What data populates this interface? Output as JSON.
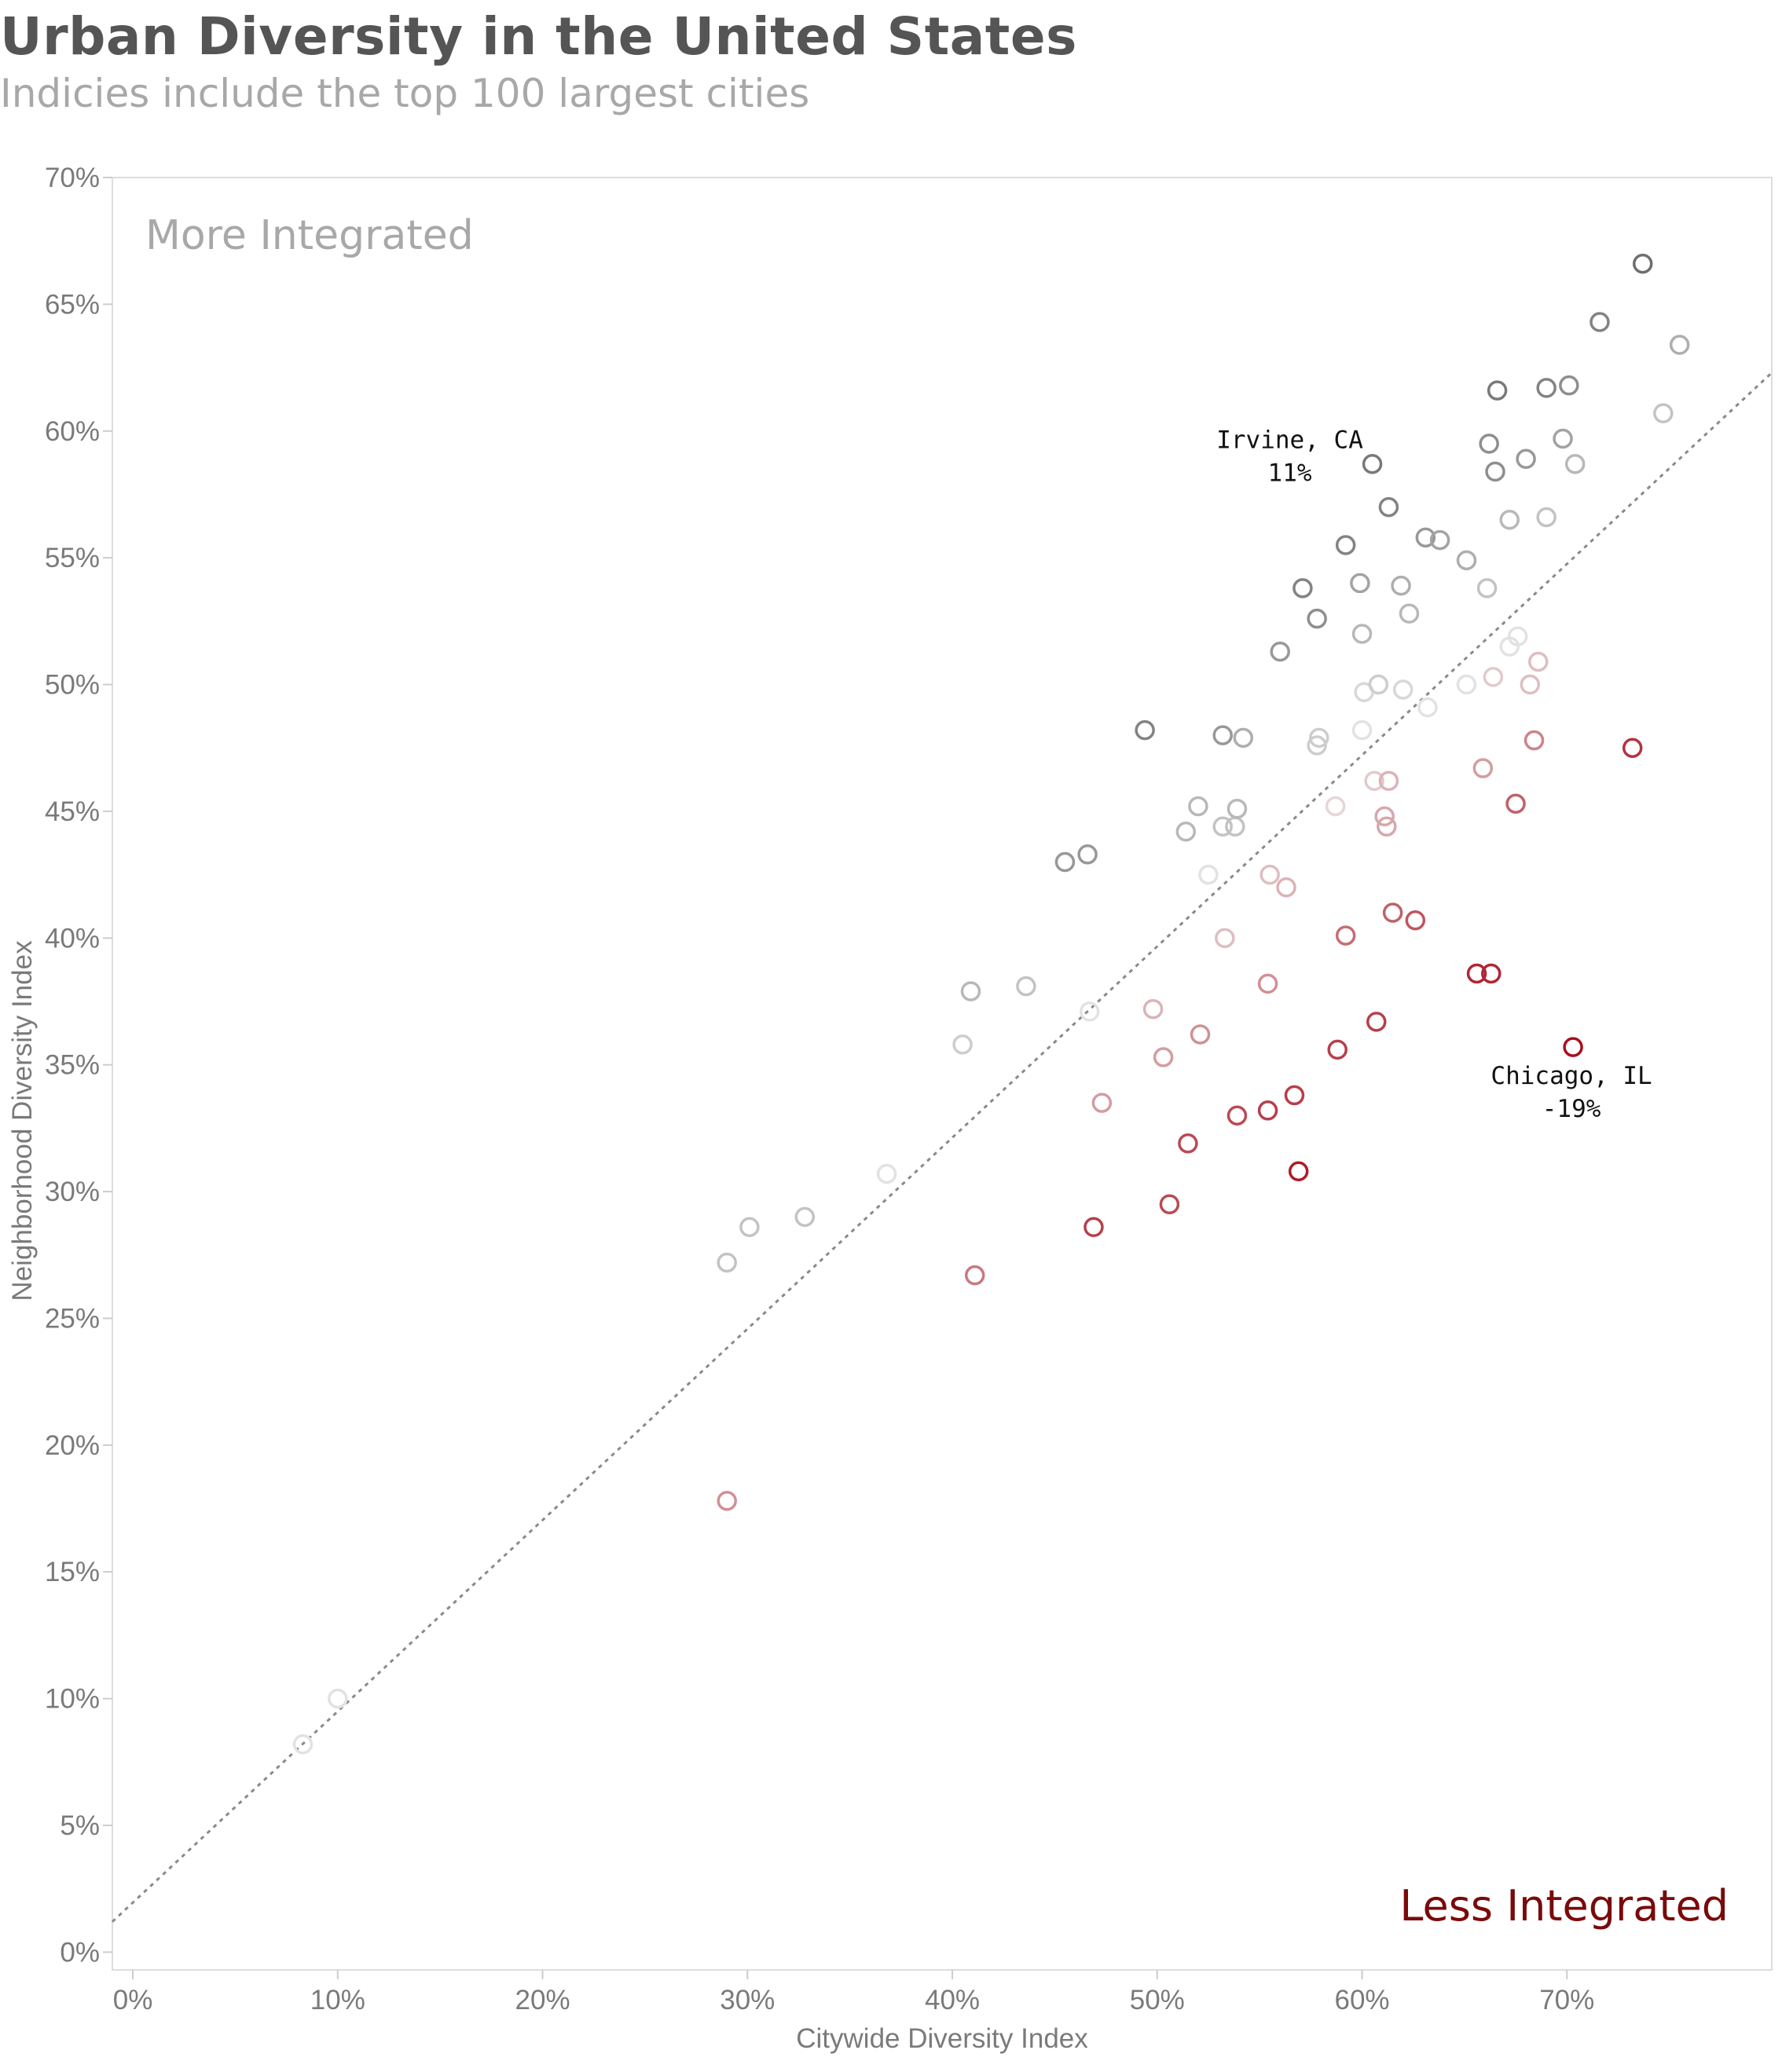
{
  "title": "Urban Diversity in the United States",
  "subtitle": "Indicies include the top 100 largest cities",
  "chart_data": {
    "type": "scatter",
    "title": "Urban Diversity in the United States",
    "subtitle": "Indicies include the top 100 largest cities",
    "xlabel": "Citywide Diversity Index",
    "ylabel": "Neighborhood Diversity Index",
    "xlim": [
      -0.01,
      0.8
    ],
    "ylim": [
      -0.007,
      0.7
    ],
    "x_ticks": [
      "0%",
      "10%",
      "20%",
      "30%",
      "40%",
      "50%",
      "60%",
      "70%"
    ],
    "y_ticks": [
      "0%",
      "5%",
      "10%",
      "15%",
      "20%",
      "25%",
      "30%",
      "35%",
      "40%",
      "45%",
      "50%",
      "55%",
      "60%",
      "65%",
      "70%"
    ],
    "grid": false,
    "marker": "hollow-circle",
    "color_scale": {
      "more_integrated": "#6e6e6e",
      "neutral": "#ededed",
      "less_integrated": "#a8101e"
    },
    "corner_labels": {
      "top_left": "More Integrated",
      "bottom_right": "Less Integrated"
    },
    "reference_line": {
      "style": "dotted",
      "color": "#8a8a8a",
      "x1": -0.01,
      "y1": 0.012,
      "x2": 0.8,
      "y2": 0.623
    },
    "annotations": [
      {
        "city": "Irvine, CA",
        "value": "11%",
        "x": 0.605,
        "y": 0.587
      },
      {
        "city": "Chicago, IL",
        "value": "-19%",
        "x": 0.703,
        "y": 0.357
      }
    ],
    "points": [
      {
        "x": 0.083,
        "y": 0.082,
        "d": 0.01
      },
      {
        "x": 0.1,
        "y": 0.1,
        "d": 0.01
      },
      {
        "x": 0.29,
        "y": 0.272,
        "d": 0.04
      },
      {
        "x": 0.301,
        "y": 0.286,
        "d": 0.04
      },
      {
        "x": 0.328,
        "y": 0.29,
        "d": 0.04
      },
      {
        "x": 0.368,
        "y": 0.307,
        "d": 0.01
      },
      {
        "x": 0.29,
        "y": 0.178,
        "d": -0.08
      },
      {
        "x": 0.411,
        "y": 0.267,
        "d": -0.1
      },
      {
        "x": 0.405,
        "y": 0.358,
        "d": 0.03
      },
      {
        "x": 0.409,
        "y": 0.379,
        "d": 0.05
      },
      {
        "x": 0.436,
        "y": 0.381,
        "d": 0.04
      },
      {
        "x": 0.455,
        "y": 0.43,
        "d": 0.08
      },
      {
        "x": 0.466,
        "y": 0.433,
        "d": 0.08
      },
      {
        "x": 0.467,
        "y": 0.371,
        "d": 0.01
      },
      {
        "x": 0.469,
        "y": 0.286,
        "d": -0.15
      },
      {
        "x": 0.473,
        "y": 0.335,
        "d": -0.07
      },
      {
        "x": 0.494,
        "y": 0.482,
        "d": 0.1
      },
      {
        "x": 0.498,
        "y": 0.372,
        "d": -0.05
      },
      {
        "x": 0.503,
        "y": 0.353,
        "d": -0.07
      },
      {
        "x": 0.506,
        "y": 0.295,
        "d": -0.14
      },
      {
        "x": 0.514,
        "y": 0.442,
        "d": 0.05
      },
      {
        "x": 0.515,
        "y": 0.319,
        "d": -0.14
      },
      {
        "x": 0.52,
        "y": 0.452,
        "d": 0.05
      },
      {
        "x": 0.521,
        "y": 0.362,
        "d": -0.08
      },
      {
        "x": 0.525,
        "y": 0.425,
        "d": 0.01
      },
      {
        "x": 0.532,
        "y": 0.48,
        "d": 0.08
      },
      {
        "x": 0.532,
        "y": 0.444,
        "d": 0.04
      },
      {
        "x": 0.533,
        "y": 0.4,
        "d": -0.04
      },
      {
        "x": 0.538,
        "y": 0.444,
        "d": 0.04
      },
      {
        "x": 0.539,
        "y": 0.451,
        "d": 0.05
      },
      {
        "x": 0.539,
        "y": 0.33,
        "d": -0.14
      },
      {
        "x": 0.542,
        "y": 0.479,
        "d": 0.06
      },
      {
        "x": 0.554,
        "y": 0.332,
        "d": -0.15
      },
      {
        "x": 0.554,
        "y": 0.382,
        "d": -0.08
      },
      {
        "x": 0.555,
        "y": 0.425,
        "d": -0.04
      },
      {
        "x": 0.56,
        "y": 0.513,
        "d": 0.08
      },
      {
        "x": 0.563,
        "y": 0.42,
        "d": -0.05
      },
      {
        "x": 0.567,
        "y": 0.338,
        "d": -0.15
      },
      {
        "x": 0.569,
        "y": 0.308,
        "d": -0.18
      },
      {
        "x": 0.571,
        "y": 0.538,
        "d": 0.1
      },
      {
        "x": 0.578,
        "y": 0.526,
        "d": 0.09
      },
      {
        "x": 0.578,
        "y": 0.476,
        "d": 0.03
      },
      {
        "x": 0.579,
        "y": 0.479,
        "d": 0.03
      },
      {
        "x": 0.587,
        "y": 0.452,
        "d": -0.02
      },
      {
        "x": 0.588,
        "y": 0.356,
        "d": -0.15
      },
      {
        "x": 0.592,
        "y": 0.555,
        "d": 0.1
      },
      {
        "x": 0.592,
        "y": 0.401,
        "d": -0.11
      },
      {
        "x": 0.599,
        "y": 0.54,
        "d": 0.07
      },
      {
        "x": 0.6,
        "y": 0.52,
        "d": 0.05
      },
      {
        "x": 0.6,
        "y": 0.482,
        "d": 0.01
      },
      {
        "x": 0.601,
        "y": 0.497,
        "d": 0.02
      },
      {
        "x": 0.605,
        "y": 0.587,
        "d": 0.11
      },
      {
        "x": 0.606,
        "y": 0.462,
        "d": -0.03
      },
      {
        "x": 0.607,
        "y": 0.367,
        "d": -0.15
      },
      {
        "x": 0.608,
        "y": 0.5,
        "d": 0.03
      },
      {
        "x": 0.611,
        "y": 0.448,
        "d": -0.06
      },
      {
        "x": 0.612,
        "y": 0.444,
        "d": -0.06
      },
      {
        "x": 0.613,
        "y": 0.57,
        "d": 0.1
      },
      {
        "x": 0.613,
        "y": 0.462,
        "d": -0.05
      },
      {
        "x": 0.615,
        "y": 0.41,
        "d": -0.12
      },
      {
        "x": 0.619,
        "y": 0.539,
        "d": 0.06
      },
      {
        "x": 0.62,
        "y": 0.498,
        "d": 0.02
      },
      {
        "x": 0.623,
        "y": 0.528,
        "d": 0.05
      },
      {
        "x": 0.626,
        "y": 0.407,
        "d": -0.13
      },
      {
        "x": 0.631,
        "y": 0.558,
        "d": 0.08
      },
      {
        "x": 0.632,
        "y": 0.491,
        "d": 0.01
      },
      {
        "x": 0.638,
        "y": 0.557,
        "d": 0.07
      },
      {
        "x": 0.651,
        "y": 0.549,
        "d": 0.06
      },
      {
        "x": 0.651,
        "y": 0.5,
        "d": 0.01
      },
      {
        "x": 0.656,
        "y": 0.386,
        "d": -0.17
      },
      {
        "x": 0.659,
        "y": 0.467,
        "d": -0.07
      },
      {
        "x": 0.661,
        "y": 0.538,
        "d": 0.04
      },
      {
        "x": 0.662,
        "y": 0.595,
        "d": 0.09
      },
      {
        "x": 0.663,
        "y": 0.386,
        "d": -0.17
      },
      {
        "x": 0.664,
        "y": 0.503,
        "d": -0.03
      },
      {
        "x": 0.665,
        "y": 0.584,
        "d": 0.09
      },
      {
        "x": 0.666,
        "y": 0.616,
        "d": 0.11
      },
      {
        "x": 0.672,
        "y": 0.515,
        "d": 0.01
      },
      {
        "x": 0.672,
        "y": 0.565,
        "d": 0.05
      },
      {
        "x": 0.675,
        "y": 0.453,
        "d": -0.12
      },
      {
        "x": 0.676,
        "y": 0.519,
        "d": 0.01
      },
      {
        "x": 0.68,
        "y": 0.589,
        "d": 0.08
      },
      {
        "x": 0.682,
        "y": 0.5,
        "d": -0.04
      },
      {
        "x": 0.684,
        "y": 0.478,
        "d": -0.09
      },
      {
        "x": 0.686,
        "y": 0.509,
        "d": -0.04
      },
      {
        "x": 0.69,
        "y": 0.617,
        "d": 0.1
      },
      {
        "x": 0.69,
        "y": 0.566,
        "d": 0.04
      },
      {
        "x": 0.698,
        "y": 0.597,
        "d": 0.07
      },
      {
        "x": 0.701,
        "y": 0.618,
        "d": 0.09
      },
      {
        "x": 0.703,
        "y": 0.357,
        "d": -0.19
      },
      {
        "x": 0.704,
        "y": 0.587,
        "d": 0.05
      },
      {
        "x": 0.716,
        "y": 0.643,
        "d": 0.1
      },
      {
        "x": 0.732,
        "y": 0.475,
        "d": -0.16
      },
      {
        "x": 0.737,
        "y": 0.666,
        "d": 0.12
      },
      {
        "x": 0.747,
        "y": 0.607,
        "d": 0.04
      },
      {
        "x": 0.755,
        "y": 0.634,
        "d": 0.06
      }
    ]
  }
}
